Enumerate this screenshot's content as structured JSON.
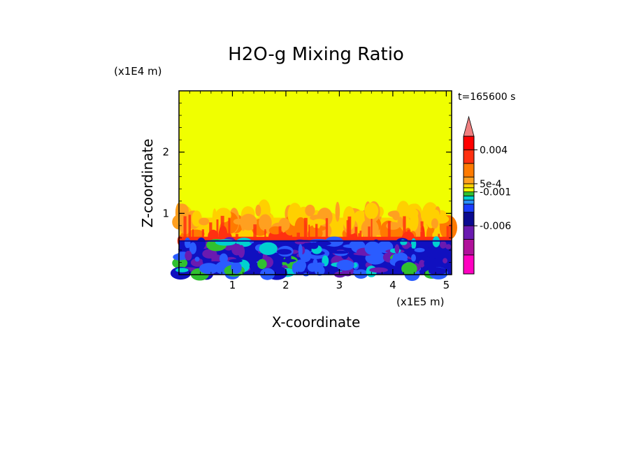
{
  "chart_data": {
    "type": "heatmap",
    "title": "H2O-g Mixing Ratio",
    "xlabel": "X-coordinate",
    "ylabel": "Z-coordinate",
    "x_scale_label": "(x1E5 m)",
    "y_scale_label": "(x1E4 m)",
    "time_label": "t=165600 s",
    "xlim": [
      0.0,
      5.1
    ],
    "ylim": [
      0.0,
      3.0
    ],
    "x_ticks": [
      "1",
      "2",
      "3",
      "4",
      "5"
    ],
    "y_ticks": [
      "1",
      "2"
    ],
    "field_regions": [
      {
        "layer": "upper",
        "z_range": [
          1.05,
          3.0
        ],
        "color": "#f0ff00"
      },
      {
        "layer": "middle",
        "z_range": [
          0.55,
          1.05
        ],
        "colors": [
          "#ffd000",
          "#ffa020",
          "#ff7a00",
          "#ff3010"
        ]
      },
      {
        "layer": "lower",
        "z_range": [
          0.0,
          0.55
        ],
        "colors": [
          "#1010c0",
          "#2a5cff",
          "#6a1ab0",
          "#00d0d0",
          "#30c030"
        ]
      }
    ],
    "colorbar": {
      "extend": "max",
      "tick_labels": [
        "0.004",
        "5e-4",
        "-0.001",
        "-0.006"
      ],
      "colors": [
        "#ff00c0",
        "#b0109a",
        "#6a1ab0",
        "#0a0a90",
        "#1a3cff",
        "#2a90ff",
        "#00d0d0",
        "#30c030",
        "#f0ff00",
        "#ffd000",
        "#ffa020",
        "#ff7a00",
        "#ff3010",
        "#ff0000",
        "#f08080"
      ]
    }
  }
}
